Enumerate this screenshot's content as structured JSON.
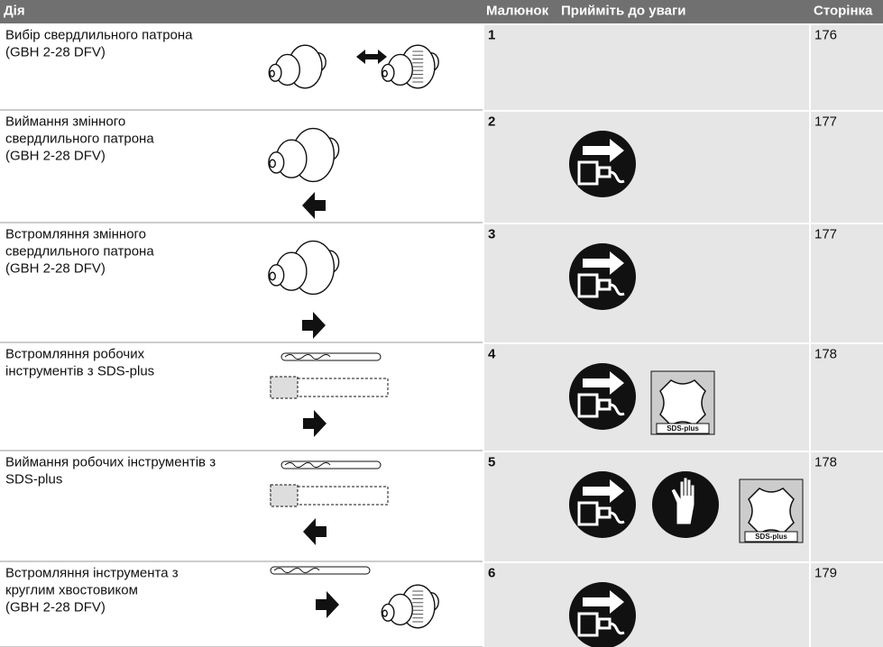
{
  "header": {
    "columns": [
      "Дія",
      "Малюнок",
      "Прийміть до уваги",
      "Сторінка"
    ]
  },
  "table": {
    "rows": [
      {
        "action": [
          "Вибір свердлильного патрона",
          "(GBH 2-28 DFV)"
        ],
        "figure": "1",
        "page": "176"
      },
      {
        "action": [
          "Виймання змінного",
          "свердлильного патрона",
          "(GBH 2-28 DFV)"
        ],
        "figure": "2",
        "page": "177"
      },
      {
        "action": [
          "Встромляння змінного",
          "свердлильного патрона",
          "(GBH 2-28 DFV)"
        ],
        "figure": "3",
        "page": "177"
      },
      {
        "action": [
          "Встромляння робочих",
          "інструментів з SDS-plus"
        ],
        "figure": "4",
        "page": "178",
        "icon_text": "SDS-plus"
      },
      {
        "action": [
          "Виймання робочих інструментів з",
          "SDS-plus"
        ],
        "figure": "5",
        "page": "178",
        "icon_text": "SDS-plus"
      },
      {
        "action": [
          "Встромляння інструмента з",
          "круглим хвостовиком",
          "(GBH 2-28 DFV)"
        ],
        "figure": "6",
        "page": "179"
      }
    ]
  }
}
